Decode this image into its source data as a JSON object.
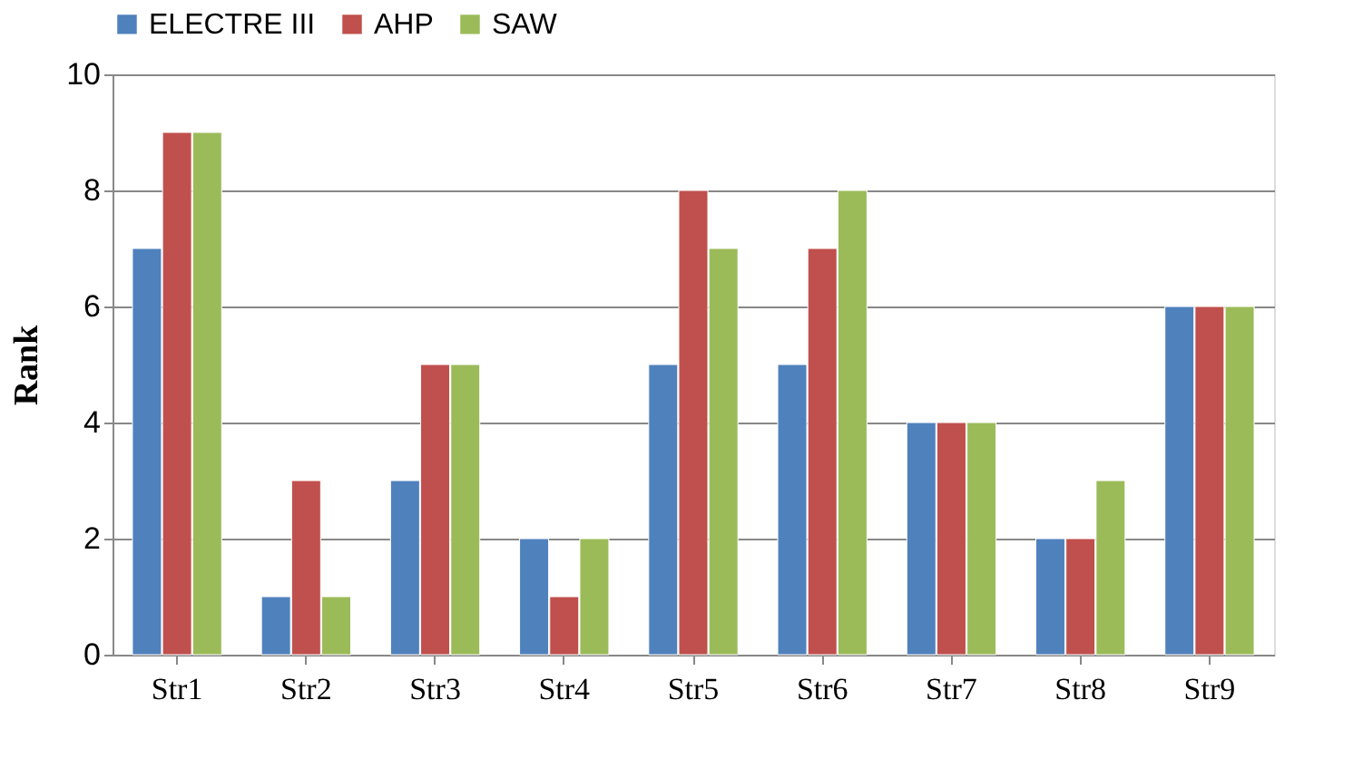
{
  "chart_data": {
    "type": "bar",
    "ylabel": "Rank",
    "categories": [
      "Str1",
      "Str2",
      "Str3",
      "Str4",
      "Str5",
      "Str6",
      "Str7",
      "Str8",
      "Str9"
    ],
    "series": [
      {
        "name": "ELECTRE III",
        "color": "#4f81bd",
        "values": [
          7,
          1,
          3,
          2,
          5,
          5,
          4,
          2,
          6
        ]
      },
      {
        "name": "AHP",
        "color": "#c0504d",
        "values": [
          9,
          3,
          5,
          1,
          8,
          7,
          4,
          2,
          6
        ]
      },
      {
        "name": "SAW",
        "color": "#9bbb59",
        "values": [
          9,
          1,
          5,
          2,
          7,
          8,
          4,
          3,
          6
        ]
      }
    ],
    "ylim": [
      0,
      10
    ],
    "yticks": [
      0,
      2,
      4,
      6,
      8,
      10
    ],
    "grid": "y",
    "legend": "top"
  }
}
